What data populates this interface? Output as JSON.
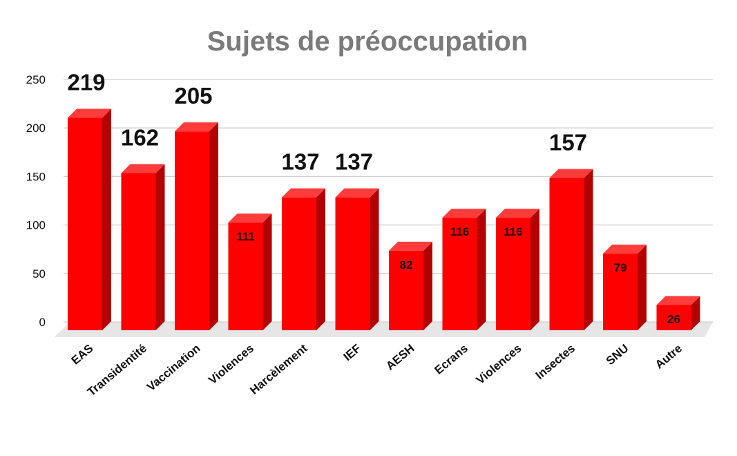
{
  "chart_data": {
    "type": "bar",
    "title": "Sujets de préoccupation",
    "xlabel": "",
    "ylabel": "",
    "ylim": [
      0,
      250
    ],
    "yticks": [
      0,
      50,
      100,
      150,
      200,
      250
    ],
    "grid": true,
    "legend": "none",
    "categories": [
      "EAS",
      "Transidentité",
      "Vaccination",
      "Violences",
      "Harcèlement",
      "IEF",
      "AESH",
      "Ecrans",
      "Violences",
      "Insectes",
      "SNU",
      "Autre"
    ],
    "values": [
      219,
      162,
      205,
      111,
      137,
      137,
      82,
      116,
      116,
      157,
      79,
      26
    ],
    "data_labels": [
      "219",
      "162",
      "205",
      "111",
      "137",
      "137",
      "82",
      "116",
      "116",
      "157",
      "79",
      "26"
    ],
    "label_style": [
      "above",
      "above",
      "above",
      "inside",
      "above",
      "above",
      "inside",
      "inside",
      "inside",
      "above",
      "inside",
      "inside"
    ],
    "colors": {
      "bar_front": "#ff0000",
      "bar_side": "#b30000",
      "bar_top": "#ff3c3c",
      "floor": "#e6e6e6"
    }
  }
}
